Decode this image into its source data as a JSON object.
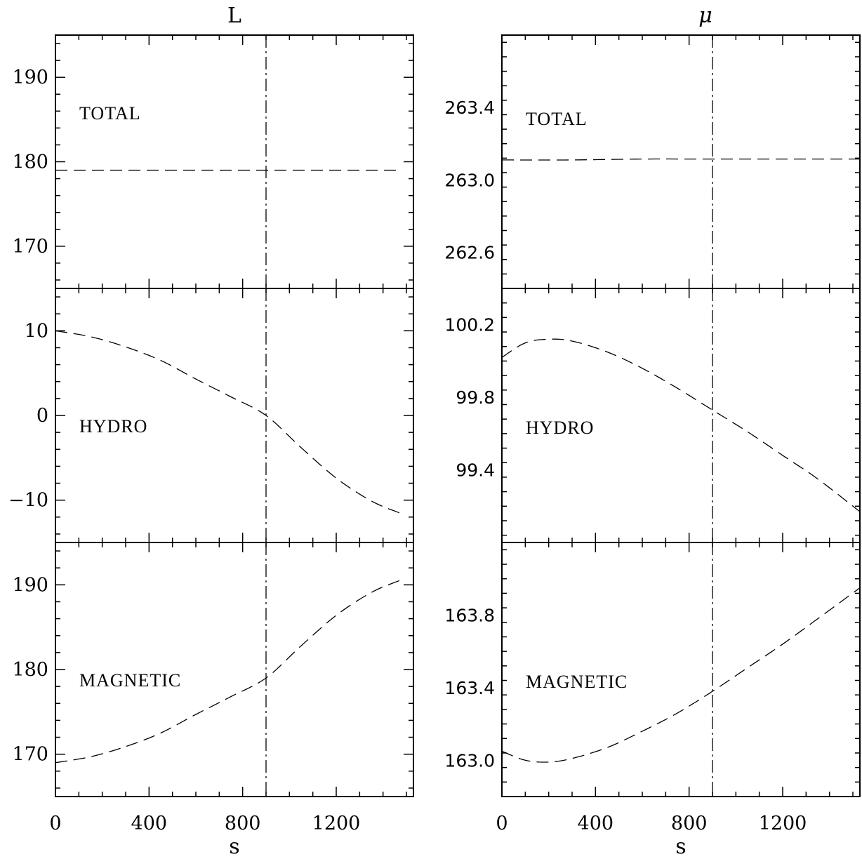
{
  "chart_data": [
    {
      "type": "line",
      "title": "L",
      "xlabel": "s",
      "xlim": [
        0,
        1530
      ],
      "x_ticks": [
        0,
        400,
        800,
        1200
      ],
      "marker_line_x": 900,
      "panels": [
        {
          "label": "TOTAL",
          "ylim": [
            165,
            195
          ],
          "y_ticks": [
            170,
            180,
            190
          ],
          "series": [
            {
              "x": [
                0,
                300,
                600,
                900,
                1200,
                1470
              ],
              "y": [
                179.0,
                179.0,
                179.0,
                179.0,
                179.0,
                179.0
              ]
            }
          ]
        },
        {
          "label": "HYDRO",
          "ylim": [
            -15,
            15
          ],
          "y_ticks": [
            -10,
            0,
            10
          ],
          "series": [
            {
              "x": [
                0,
                150,
                300,
                450,
                600,
                750,
                900,
                1050,
                1200,
                1350,
                1470
              ],
              "y": [
                10.0,
                9.3,
                8.1,
                6.5,
                4.3,
                2.2,
                0.0,
                -3.8,
                -7.4,
                -10.1,
                -11.5
              ]
            }
          ]
        },
        {
          "label": "MAGNETIC",
          "ylim": [
            165,
            195
          ],
          "y_ticks": [
            170,
            180,
            190
          ],
          "series": [
            {
              "x": [
                0,
                150,
                300,
                450,
                600,
                750,
                900,
                1050,
                1200,
                1350,
                1470
              ],
              "y": [
                169.0,
                169.7,
                170.9,
                172.5,
                174.7,
                176.8,
                179.0,
                182.8,
                186.4,
                189.1,
                190.5
              ]
            }
          ]
        }
      ]
    },
    {
      "type": "line",
      "title": "μ",
      "xlabel": "s",
      "xlim": [
        0,
        1530
      ],
      "x_ticks": [
        0,
        400,
        800,
        1200
      ],
      "marker_line_x": 900,
      "panels": [
        {
          "label": "TOTAL",
          "ylim": [
            262.4,
            263.8
          ],
          "y_ticks": [
            "262.6",
            "263.0",
            "263.4"
          ],
          "series": [
            {
              "x": [
                0,
                300,
                600,
                900,
                1200,
                1530
              ],
              "y": [
                263.11,
                263.11,
                263.115,
                263.115,
                263.115,
                263.115
              ]
            }
          ]
        },
        {
          "label": "HYDRO",
          "ylim": [
            99.0,
            100.4
          ],
          "y_ticks": [
            "99.4",
            "99.8",
            "100.2"
          ],
          "series": [
            {
              "x": [
                0,
                100,
                200,
                300,
                450,
                600,
                750,
                900,
                1050,
                1200,
                1350,
                1530
              ],
              "y": [
                100.02,
                100.1,
                100.12,
                100.11,
                100.05,
                99.96,
                99.85,
                99.73,
                99.61,
                99.48,
                99.35,
                99.17
              ]
            }
          ]
        },
        {
          "label": "MAGNETIC",
          "ylim": [
            162.8,
            164.2
          ],
          "y_ticks": [
            "163.0",
            "163.4",
            "163.8"
          ],
          "series": [
            {
              "x": [
                0,
                100,
                200,
                300,
                450,
                600,
                750,
                900,
                1050,
                1200,
                1350,
                1530
              ],
              "y": [
                163.05,
                163.0,
                162.99,
                163.01,
                163.07,
                163.16,
                163.26,
                163.38,
                163.51,
                163.64,
                163.78,
                163.95
              ]
            }
          ]
        }
      ]
    }
  ]
}
